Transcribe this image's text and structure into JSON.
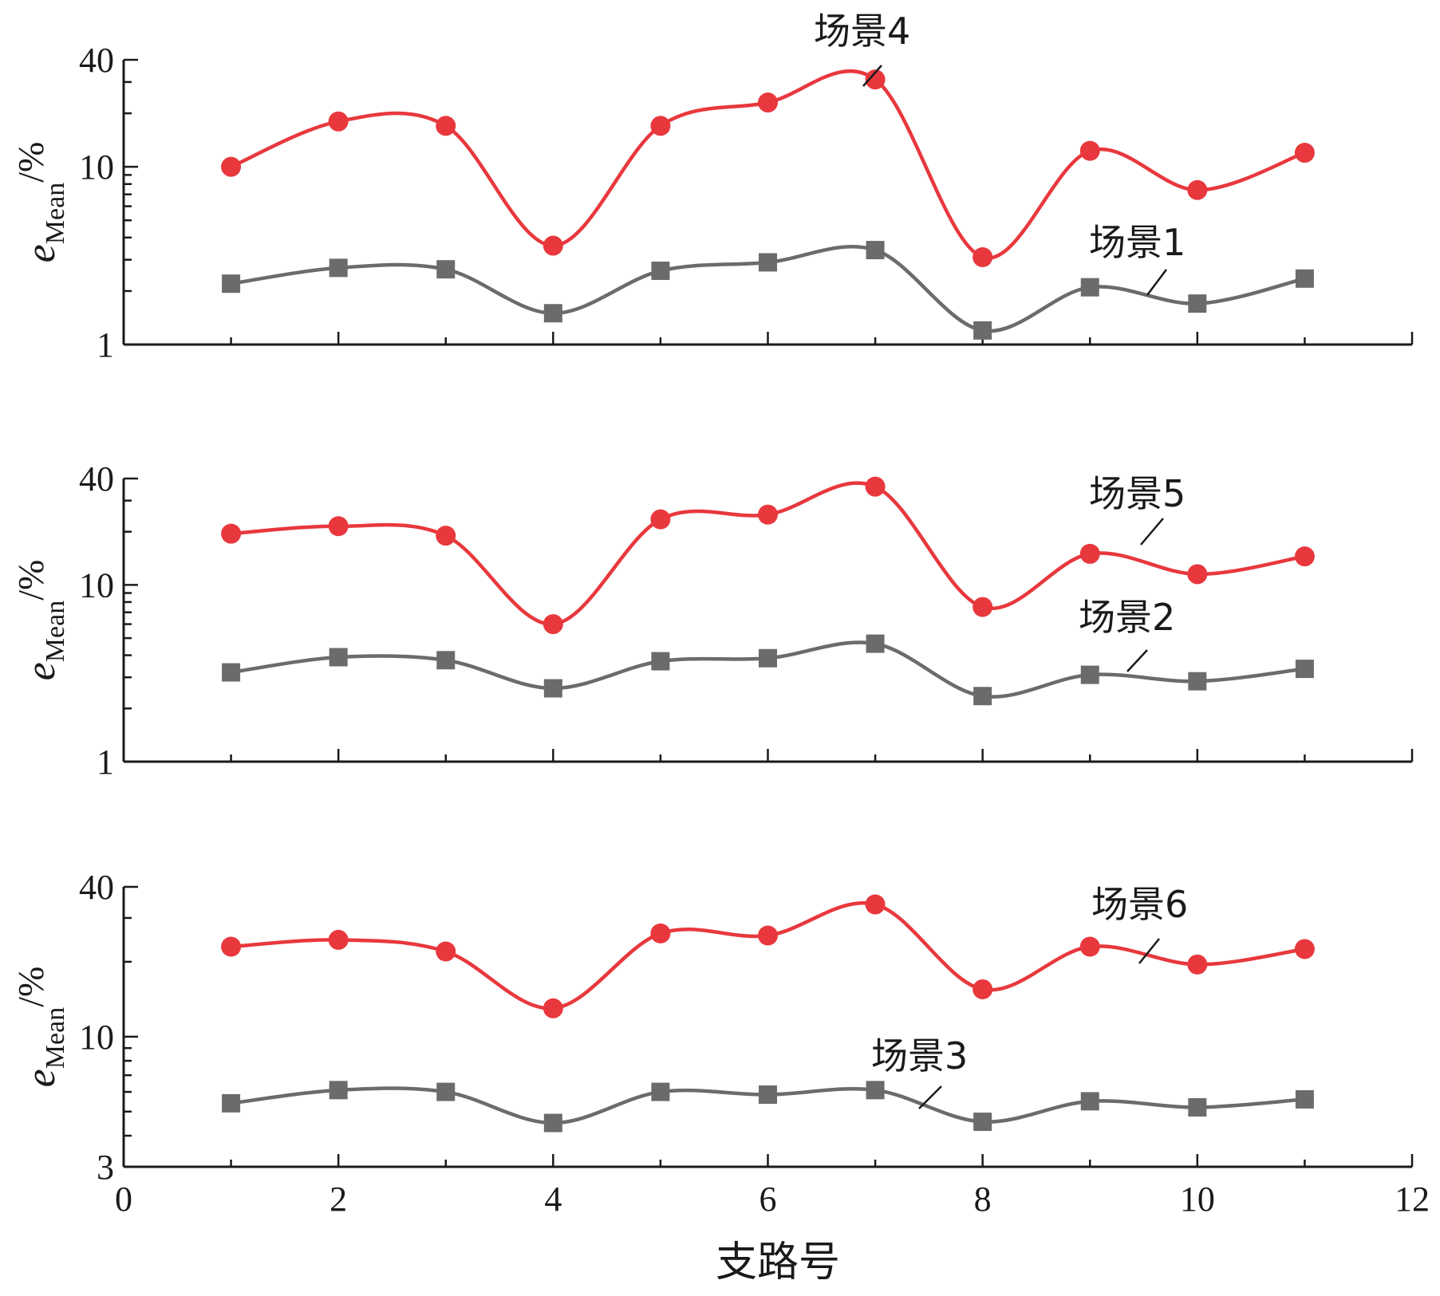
{
  "chart_data": [
    {
      "type": "line",
      "panel": "top",
      "ylabel": {
        "main": "e",
        "sub": "Mean",
        "unit": "/%"
      },
      "y_scale": "log",
      "ylim": [
        1,
        40
      ],
      "yticks": [
        1,
        10,
        40
      ],
      "xlim": [
        0,
        12
      ],
      "xticks": [
        0,
        2,
        4,
        6,
        8,
        10,
        12
      ],
      "show_xtick_labels": false,
      "x": [
        1,
        2,
        3,
        4,
        5,
        6,
        7,
        8,
        9,
        10,
        11
      ],
      "series": [
        {
          "name": "场景4",
          "color": "#e8383d",
          "marker": "circle",
          "values": [
            10.0,
            18.0,
            17.0,
            3.6,
            17.0,
            23.0,
            31.0,
            3.1,
            12.3,
            7.4,
            12.0
          ]
        },
        {
          "name": "场景1",
          "color": "#6b6b6b",
          "marker": "square",
          "values": [
            2.2,
            2.7,
            2.65,
            1.5,
            2.6,
            2.9,
            3.4,
            1.2,
            2.1,
            1.7,
            2.35
          ]
        }
      ]
    },
    {
      "type": "line",
      "panel": "middle",
      "ylabel": {
        "main": "e",
        "sub": "Mean",
        "unit": "/%"
      },
      "y_scale": "log",
      "ylim": [
        1,
        40
      ],
      "yticks": [
        1,
        10,
        40
      ],
      "xlim": [
        0,
        12
      ],
      "xticks": [
        0,
        2,
        4,
        6,
        8,
        10,
        12
      ],
      "show_xtick_labels": false,
      "x": [
        1,
        2,
        3,
        4,
        5,
        6,
        7,
        8,
        9,
        10,
        11
      ],
      "series": [
        {
          "name": "场景5",
          "color": "#e8383d",
          "marker": "circle",
          "values": [
            19.5,
            21.5,
            19.0,
            6.0,
            23.5,
            25.0,
            36.0,
            7.5,
            15.0,
            11.5,
            14.5
          ]
        },
        {
          "name": "场景2",
          "color": "#6b6b6b",
          "marker": "square",
          "values": [
            3.2,
            3.9,
            3.75,
            2.6,
            3.7,
            3.85,
            4.65,
            2.35,
            3.1,
            2.85,
            3.35
          ]
        }
      ]
    },
    {
      "type": "line",
      "panel": "bottom",
      "ylabel": {
        "main": "e",
        "sub": "Mean",
        "unit": "/%"
      },
      "y_scale": "log",
      "ylim": [
        3,
        40
      ],
      "yticks": [
        3,
        10,
        40
      ],
      "xlim": [
        0,
        12
      ],
      "xticks": [
        0,
        2,
        4,
        6,
        8,
        10,
        12
      ],
      "show_xtick_labels": true,
      "xlabel": "支路号",
      "x": [
        1,
        2,
        3,
        4,
        5,
        6,
        7,
        8,
        9,
        10,
        11
      ],
      "series": [
        {
          "name": "场景6",
          "color": "#e8383d",
          "marker": "circle",
          "values": [
            23.0,
            24.5,
            22.0,
            13.0,
            26.0,
            25.5,
            34.0,
            15.5,
            23.0,
            19.5,
            22.5
          ]
        },
        {
          "name": "场景3",
          "color": "#6b6b6b",
          "marker": "square",
          "values": [
            5.4,
            6.1,
            6.0,
            4.5,
            6.0,
            5.85,
            6.1,
            4.55,
            5.5,
            5.2,
            5.6
          ]
        }
      ]
    }
  ]
}
